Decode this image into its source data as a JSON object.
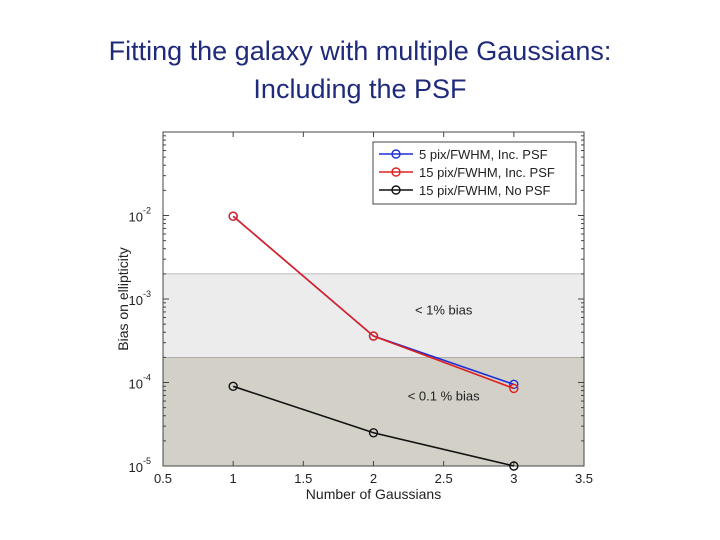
{
  "title_line1": "Fitting the galaxy with multiple Gaussians:",
  "title_line2": "Including the PSF",
  "chart_data": {
    "type": "line",
    "xlabel": "Number of Gaussians",
    "ylabel": "Bias on ellipticity",
    "xlim": [
      0.5,
      3.5
    ],
    "ylim": [
      1e-05,
      0.1
    ],
    "yscale": "log",
    "xticks": [
      {
        "value": 0.5,
        "label": "0.5"
      },
      {
        "value": 1,
        "label": "1"
      },
      {
        "value": 1.5,
        "label": "1.5"
      },
      {
        "value": 2,
        "label": "2"
      },
      {
        "value": 2.5,
        "label": "2.5"
      },
      {
        "value": 3,
        "label": "3"
      },
      {
        "value": 3.5,
        "label": "3.5"
      }
    ],
    "yticks": [
      {
        "value": 0.01,
        "base": "10",
        "exp": "-2"
      },
      {
        "value": 0.001,
        "base": "10",
        "exp": "-3"
      },
      {
        "value": 0.0001,
        "base": "10",
        "exp": "-4"
      },
      {
        "value": 1e-05,
        "base": "10",
        "exp": "-5"
      }
    ],
    "bands": [
      {
        "from": 0.0002,
        "to": 0.002,
        "color": "#ececec",
        "label": "< 1% bias",
        "label_x": 2.5,
        "label_y": 0.00075
      },
      {
        "from": 1e-05,
        "to": 0.0002,
        "color": "#d3d0c7",
        "label": "< 0.1 % bias",
        "label_x": 2.5,
        "label_y": 7e-05
      }
    ],
    "legend_position": "top-right",
    "series": [
      {
        "name": "5 pix/FWHM, Inc. PSF",
        "color": "#1f2fd6",
        "x": [
          1,
          2,
          3
        ],
        "y": [
          0.0098,
          0.00036,
          9.5e-05
        ]
      },
      {
        "name": "15 pix/FWHM, Inc. PSF",
        "color": "#e02020",
        "x": [
          1,
          2,
          3
        ],
        "y": [
          0.0098,
          0.00036,
          8.5e-05
        ]
      },
      {
        "name": "15 pix/FWHM, No PSF",
        "color": "#111111",
        "x": [
          1,
          2,
          3
        ],
        "y": [
          9e-05,
          2.5e-05,
          1e-05
        ]
      }
    ]
  }
}
